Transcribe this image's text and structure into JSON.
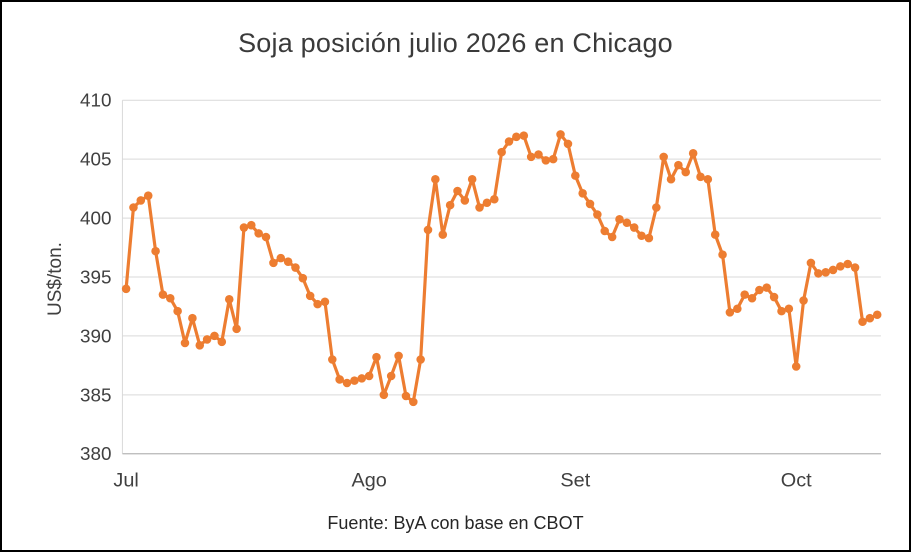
{
  "window": {
    "background": "#ffffff",
    "border_color": "#000000"
  },
  "chart_data": {
    "type": "line",
    "title": "Soja posición julio 2026 en Chicago",
    "ylabel": "US$/ton.",
    "xlabel": "",
    "source_note": "Fuente: ByA con base en CBOT",
    "ylim": [
      380,
      410
    ],
    "y_ticks": [
      380,
      385,
      390,
      395,
      400,
      405,
      410
    ],
    "x_ticks": [
      {
        "label": "Jul",
        "index": 0
      },
      {
        "label": "Ago",
        "index": 33
      },
      {
        "label": "Set",
        "index": 61
      },
      {
        "label": "Oct",
        "index": 91
      }
    ],
    "grid": "horizontal",
    "grid_color": "#d9d9d9",
    "axis_color": "#bfbfbf",
    "legend": "none",
    "marker": "circle",
    "series": [
      {
        "color": "#ED7D31",
        "values": [
          394.0,
          400.9,
          401.5,
          401.9,
          397.2,
          393.5,
          393.2,
          392.1,
          389.4,
          391.5,
          389.2,
          389.7,
          390.0,
          389.5,
          393.1,
          390.6,
          399.2,
          399.4,
          398.7,
          398.4,
          396.2,
          396.6,
          396.3,
          395.8,
          394.9,
          393.4,
          392.7,
          392.9,
          388.0,
          386.3,
          386.0,
          386.2,
          386.4,
          386.6,
          388.2,
          385.0,
          386.6,
          388.3,
          384.9,
          384.4,
          388.0,
          399.0,
          403.3,
          398.6,
          401.1,
          402.3,
          401.5,
          403.3,
          400.9,
          401.3,
          401.6,
          405.6,
          406.5,
          406.9,
          407.0,
          405.2,
          405.4,
          404.9,
          405.0,
          407.1,
          406.3,
          403.6,
          402.1,
          401.2,
          400.3,
          398.9,
          398.4,
          399.9,
          399.6,
          399.2,
          398.5,
          398.3,
          400.9,
          405.2,
          403.3,
          404.5,
          403.9,
          405.5,
          403.5,
          403.3,
          398.6,
          396.9,
          392.0,
          392.3,
          393.5,
          393.2,
          393.9,
          394.1,
          393.3,
          392.1,
          392.3,
          387.4,
          393.0,
          396.2,
          395.3,
          395.4,
          395.6,
          395.9,
          396.1,
          395.8,
          391.2,
          391.5,
          391.8
        ]
      }
    ]
  }
}
